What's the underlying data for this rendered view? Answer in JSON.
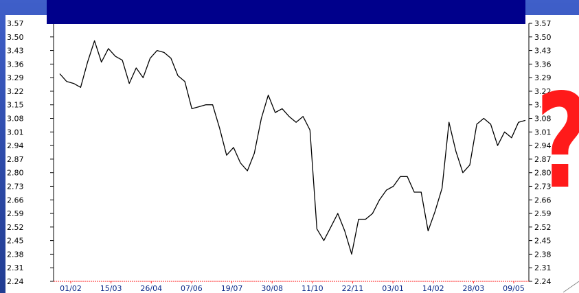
{
  "colors": {
    "background": "#2d4aa8",
    "banner": "#00008b",
    "line": "#000000",
    "question_mark": "#ff1a1a",
    "x_axis_line": "#ff1a1a",
    "x_tick_label": "#0b2a8a"
  },
  "overlay": {
    "question_mark": "?"
  },
  "chart_data": {
    "type": "line",
    "title": "",
    "xlabel": "",
    "ylabel": "",
    "ylim": [
      2.24,
      3.57
    ],
    "grid": false,
    "y_ticks": [
      "3.57",
      "3.50",
      "3.43",
      "3.36",
      "3.29",
      "3.22",
      "3.15",
      "3.08",
      "3.01",
      "2.94",
      "2.87",
      "2.80",
      "2.73",
      "2.66",
      "2.59",
      "2.52",
      "2.45",
      "2.38",
      "2.31",
      "2.24"
    ],
    "x_tick_labels": [
      "01/02",
      "15/03",
      "26/04",
      "07/06",
      "19/07",
      "30/08",
      "11/10",
      "22/11",
      "03/01",
      "14/02",
      "28/03",
      "09/05"
    ],
    "series": [
      {
        "values": [
          3.31,
          3.27,
          3.26,
          3.24,
          3.37,
          3.48,
          3.37,
          3.44,
          3.4,
          3.38,
          3.26,
          3.34,
          3.29,
          3.39,
          3.43,
          3.42,
          3.39,
          3.3,
          3.27,
          3.13,
          3.14,
          3.15,
          3.15,
          3.03,
          2.89,
          2.93,
          2.85,
          2.81,
          2.9,
          3.08,
          3.2,
          3.11,
          3.13,
          3.09,
          3.06,
          3.09,
          3.02,
          2.51,
          2.45,
          2.52,
          2.59,
          2.5,
          2.38,
          2.56,
          2.56,
          2.59,
          2.66,
          2.71,
          2.73,
          2.78,
          2.78,
          2.7,
          2.7,
          2.5,
          2.6,
          2.72,
          3.06,
          2.91,
          2.8,
          2.84,
          3.05,
          3.08,
          3.05,
          2.94,
          3.01,
          2.98,
          3.06,
          3.07
        ]
      }
    ]
  }
}
